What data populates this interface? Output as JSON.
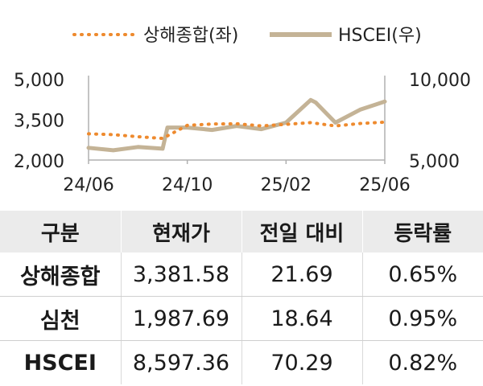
{
  "chart_data": {
    "type": "line",
    "legend_position": "top",
    "grid": false,
    "x_ticks": [
      "24/06",
      "24/10",
      "25/02",
      "25/06"
    ],
    "y_left": {
      "ticks": [
        "5,000",
        "3,500",
        "2,000"
      ],
      "range": [
        2000,
        5000
      ]
    },
    "y_right": {
      "ticks": [
        "10,000",
        "5,000"
      ],
      "range": [
        5000,
        10000
      ]
    },
    "series": [
      {
        "name": "상해종합(좌)",
        "axis": "left",
        "style": "dotted",
        "color": "#ee8a2e",
        "x": [
          "24/06",
          "24/07",
          "24/08",
          "24/09",
          "24/10",
          "24/11",
          "24/12",
          "25/01",
          "25/02",
          "25/03",
          "25/04",
          "25/05",
          "25/06"
        ],
        "values": [
          2967,
          2940,
          2860,
          2800,
          3280,
          3330,
          3340,
          3260,
          3320,
          3380,
          3260,
          3350,
          3400
        ]
      },
      {
        "name": "HSCEI(우)",
        "axis": "right",
        "style": "solid",
        "color": "#c4b396",
        "x": [
          "24/06",
          "24/07",
          "24/08",
          "24/09",
          "24/09",
          "24/10",
          "24/11",
          "24/12",
          "25/01",
          "25/02",
          "25/03",
          "25/03",
          "25/04",
          "25/05",
          "25/06"
        ],
        "values": [
          5750,
          5600,
          5800,
          5700,
          7000,
          7000,
          6850,
          7100,
          6900,
          7300,
          8700,
          8550,
          7300,
          8100,
          8597
        ]
      }
    ]
  },
  "table": {
    "headers": [
      "구분",
      "현재가",
      "전일 대비",
      "등락률"
    ],
    "rows": [
      [
        "상해종합",
        "3,381.58",
        "21.69",
        "0.65%"
      ],
      [
        "심천",
        "1,987.69",
        "18.64",
        "0.95%"
      ],
      [
        "HSCEI",
        "8,597.36",
        "70.29",
        "0.82%"
      ]
    ]
  }
}
